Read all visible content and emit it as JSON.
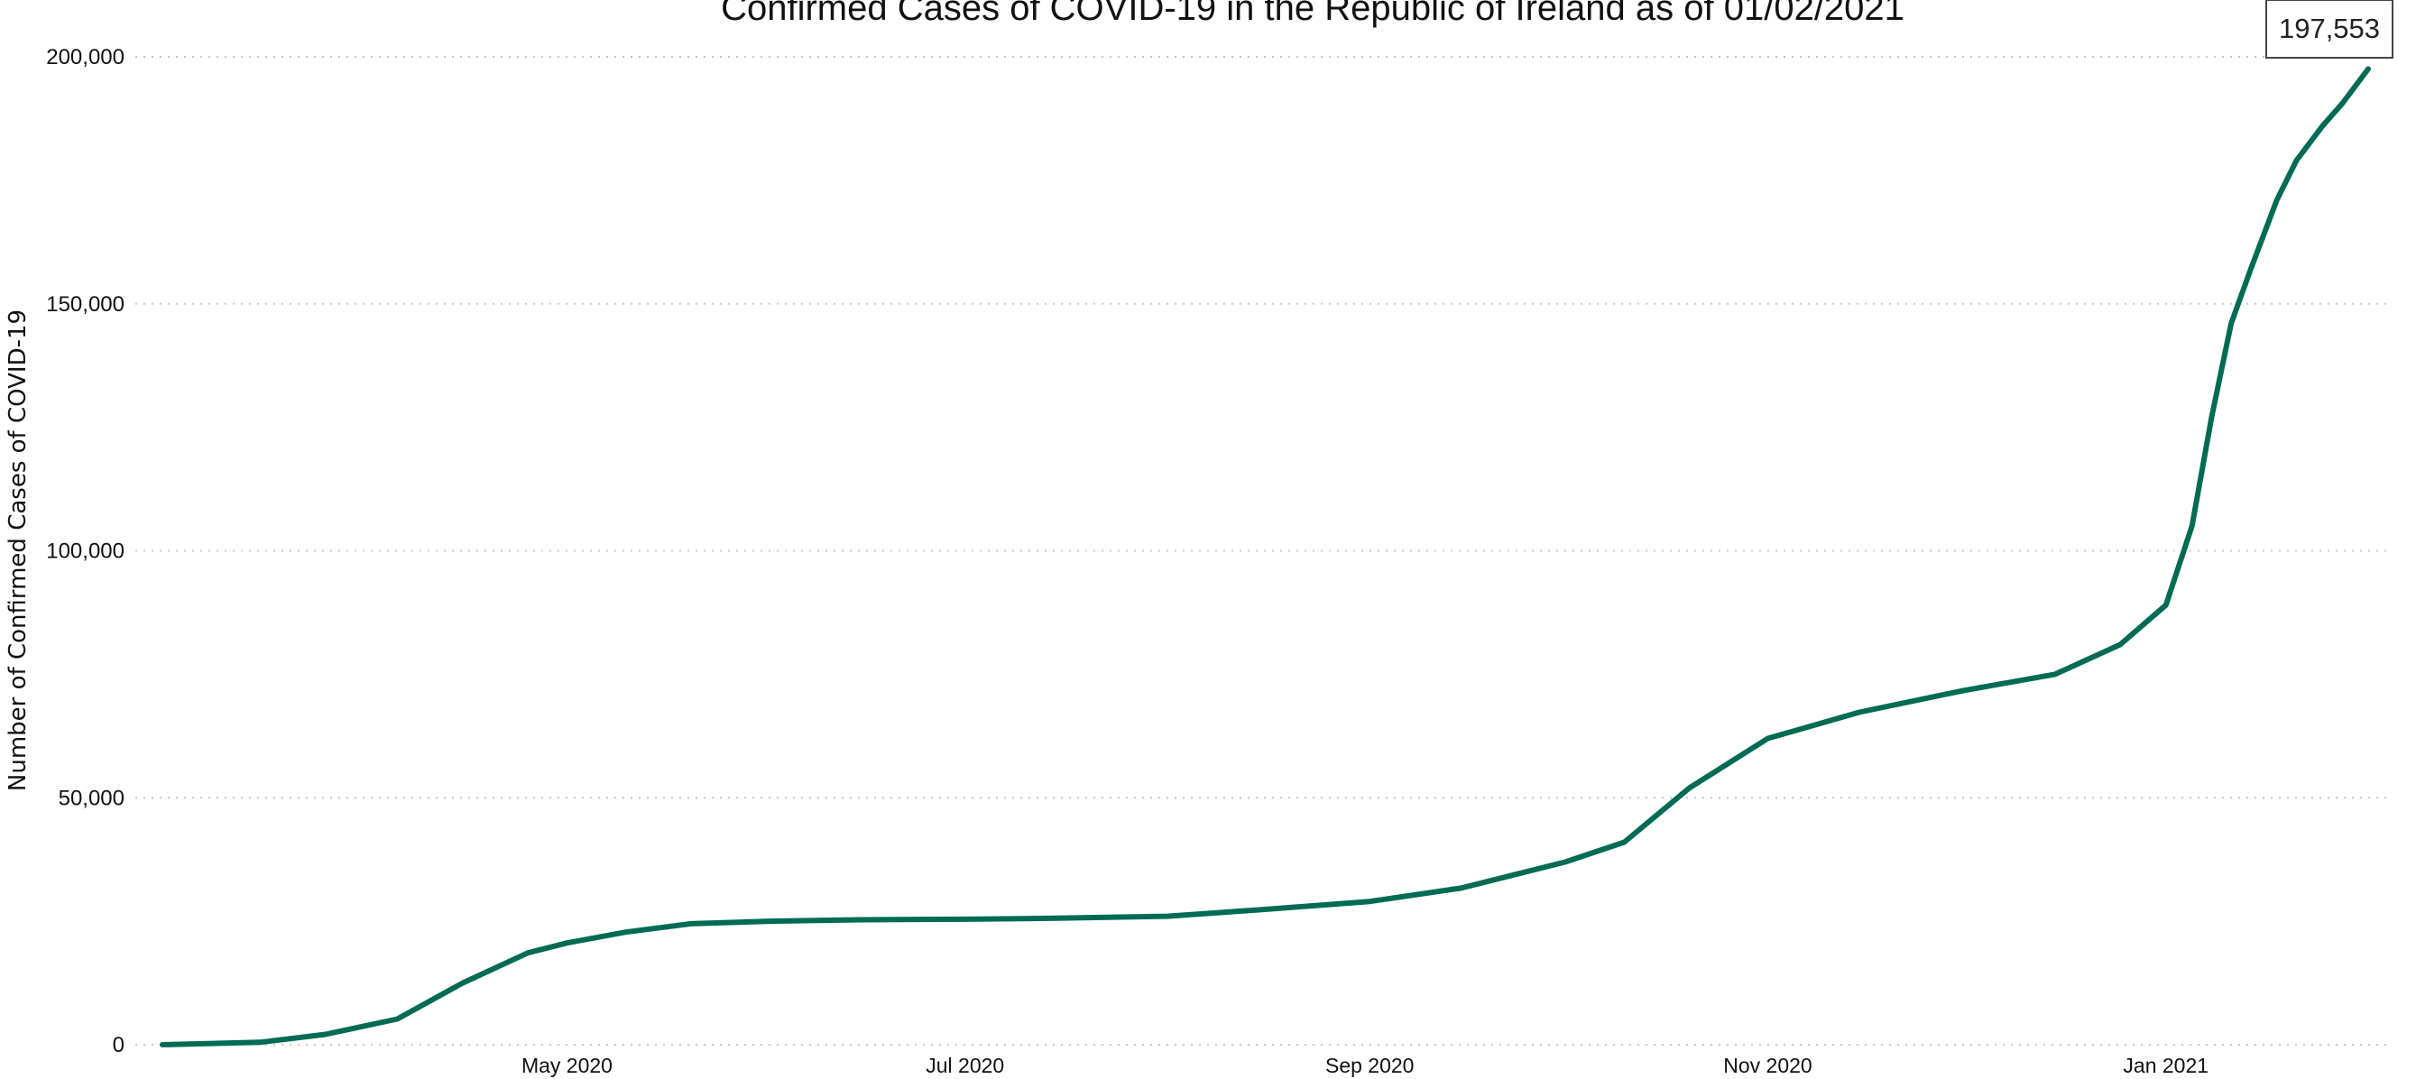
{
  "chart_data": {
    "type": "line",
    "title": "Confirmed Cases of COVID-19 in the Republic of Ireland as of  01/02/2021",
    "xlabel": "",
    "ylabel": "Number of Confirmed Cases of COVID-19",
    "ylim": [
      0,
      200000
    ],
    "xlim": [
      "2020-02-29",
      "2021-02-01"
    ],
    "y_ticks": [
      0,
      50000,
      100000,
      150000,
      200000
    ],
    "y_tick_labels": [
      "0",
      "50,000",
      "100,000",
      "150,000",
      "200,000"
    ],
    "x_ticks": [
      "2020-05-01",
      "2020-07-01",
      "2020-09-01",
      "2020-11-01",
      "2021-01-01"
    ],
    "x_tick_labels": [
      "May 2020",
      "Jul 2020",
      "Sep 2020",
      "Nov 2020",
      "Jan 2021"
    ],
    "grid": "horizontal dotted",
    "line_color": "#006b54",
    "latest_label": "197,553",
    "series": [
      {
        "x": [
          "2020-02-29",
          "2020-03-15",
          "2020-03-25",
          "2020-04-05",
          "2020-04-15",
          "2020-04-25",
          "2020-05-01",
          "2020-05-10",
          "2020-05-20",
          "2020-06-01",
          "2020-06-15",
          "2020-07-01",
          "2020-07-15",
          "2020-08-01",
          "2020-08-15",
          "2020-09-01",
          "2020-09-15",
          "2020-10-01",
          "2020-10-10",
          "2020-10-20",
          "2020-11-01",
          "2020-11-15",
          "2020-12-01",
          "2020-12-15",
          "2020-12-25",
          "2021-01-01",
          "2021-01-05",
          "2021-01-08",
          "2021-01-11",
          "2021-01-14",
          "2021-01-18",
          "2021-01-21",
          "2021-01-25",
          "2021-01-28",
          "2021-02-01"
        ],
        "y": [
          0,
          500,
          2100,
          5200,
          12500,
          18600,
          20600,
          22800,
          24500,
          25000,
          25300,
          25400,
          25600,
          26000,
          27300,
          29000,
          31700,
          37000,
          41000,
          52000,
          62000,
          67300,
          71700,
          75000,
          81000,
          89000,
          105000,
          127000,
          146000,
          157000,
          171000,
          179000,
          186000,
          190500,
          197553
        ]
      }
    ]
  }
}
